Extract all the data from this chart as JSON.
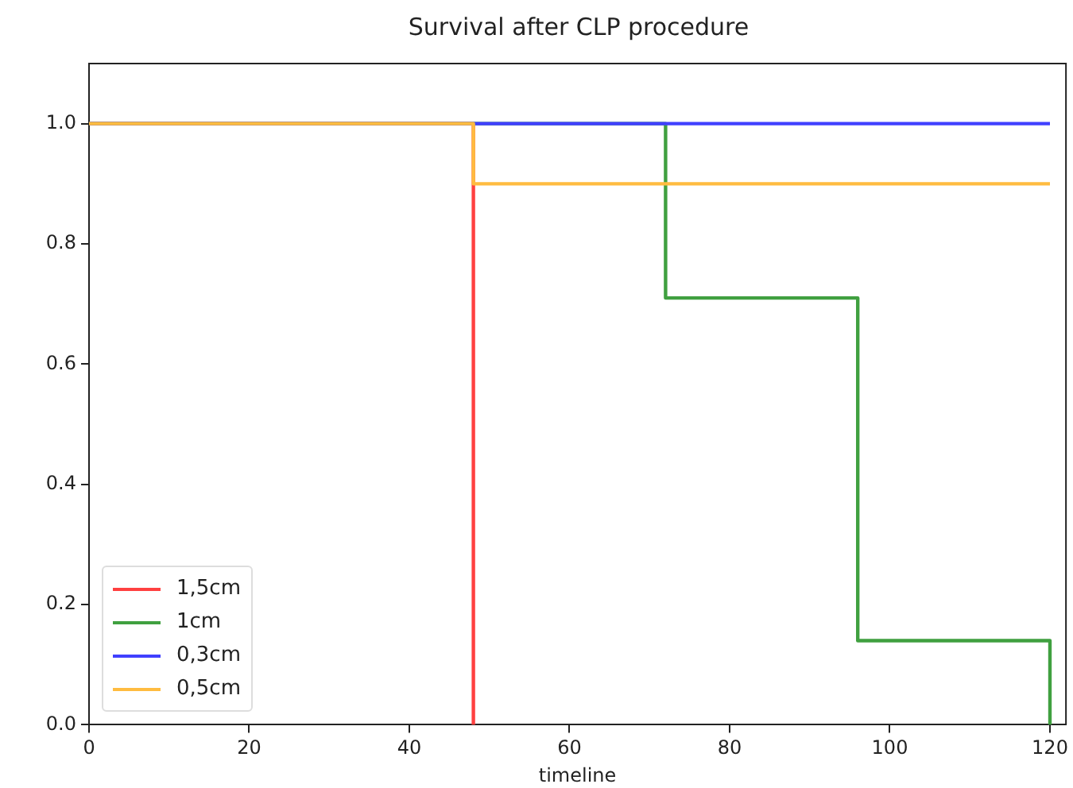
{
  "chart_data": {
    "type": "step",
    "title": "Survival after CLP procedure",
    "xlabel": "timeline",
    "xlim": [
      0,
      122
    ],
    "xticks": [
      0,
      20,
      40,
      60,
      80,
      100,
      120
    ],
    "ylim": [
      0,
      1.1
    ],
    "yticks": [
      {
        "value": 0,
        "label": "0.0"
      },
      {
        "value": 0.2,
        "label": "0.2"
      },
      {
        "value": 0.4,
        "label": "0.4"
      },
      {
        "value": 0.6,
        "label": "0.6"
      },
      {
        "value": 0.8,
        "label": "0.8"
      },
      {
        "value": 1,
        "label": "1.0"
      }
    ],
    "grid": false,
    "legend": "bottom left",
    "marker": "none",
    "line_style": "solid",
    "series": [
      {
        "name": "1,5cm",
        "color": "#ff4040",
        "x": [
          0,
          48
        ],
        "values": [
          1,
          0
        ]
      },
      {
        "name": "1cm",
        "color": "#40a040",
        "x": [
          0,
          72,
          96,
          120
        ],
        "values": [
          1,
          0.71,
          0.14,
          0
        ]
      },
      {
        "name": "0,3cm",
        "color": "#4040ff",
        "x": [
          0,
          120
        ],
        "values": [
          1,
          1
        ]
      },
      {
        "name": "0,5cm",
        "color": "#ffbc40",
        "x": [
          0,
          48,
          120
        ],
        "values": [
          1,
          0.9,
          0.9
        ]
      }
    ]
  }
}
